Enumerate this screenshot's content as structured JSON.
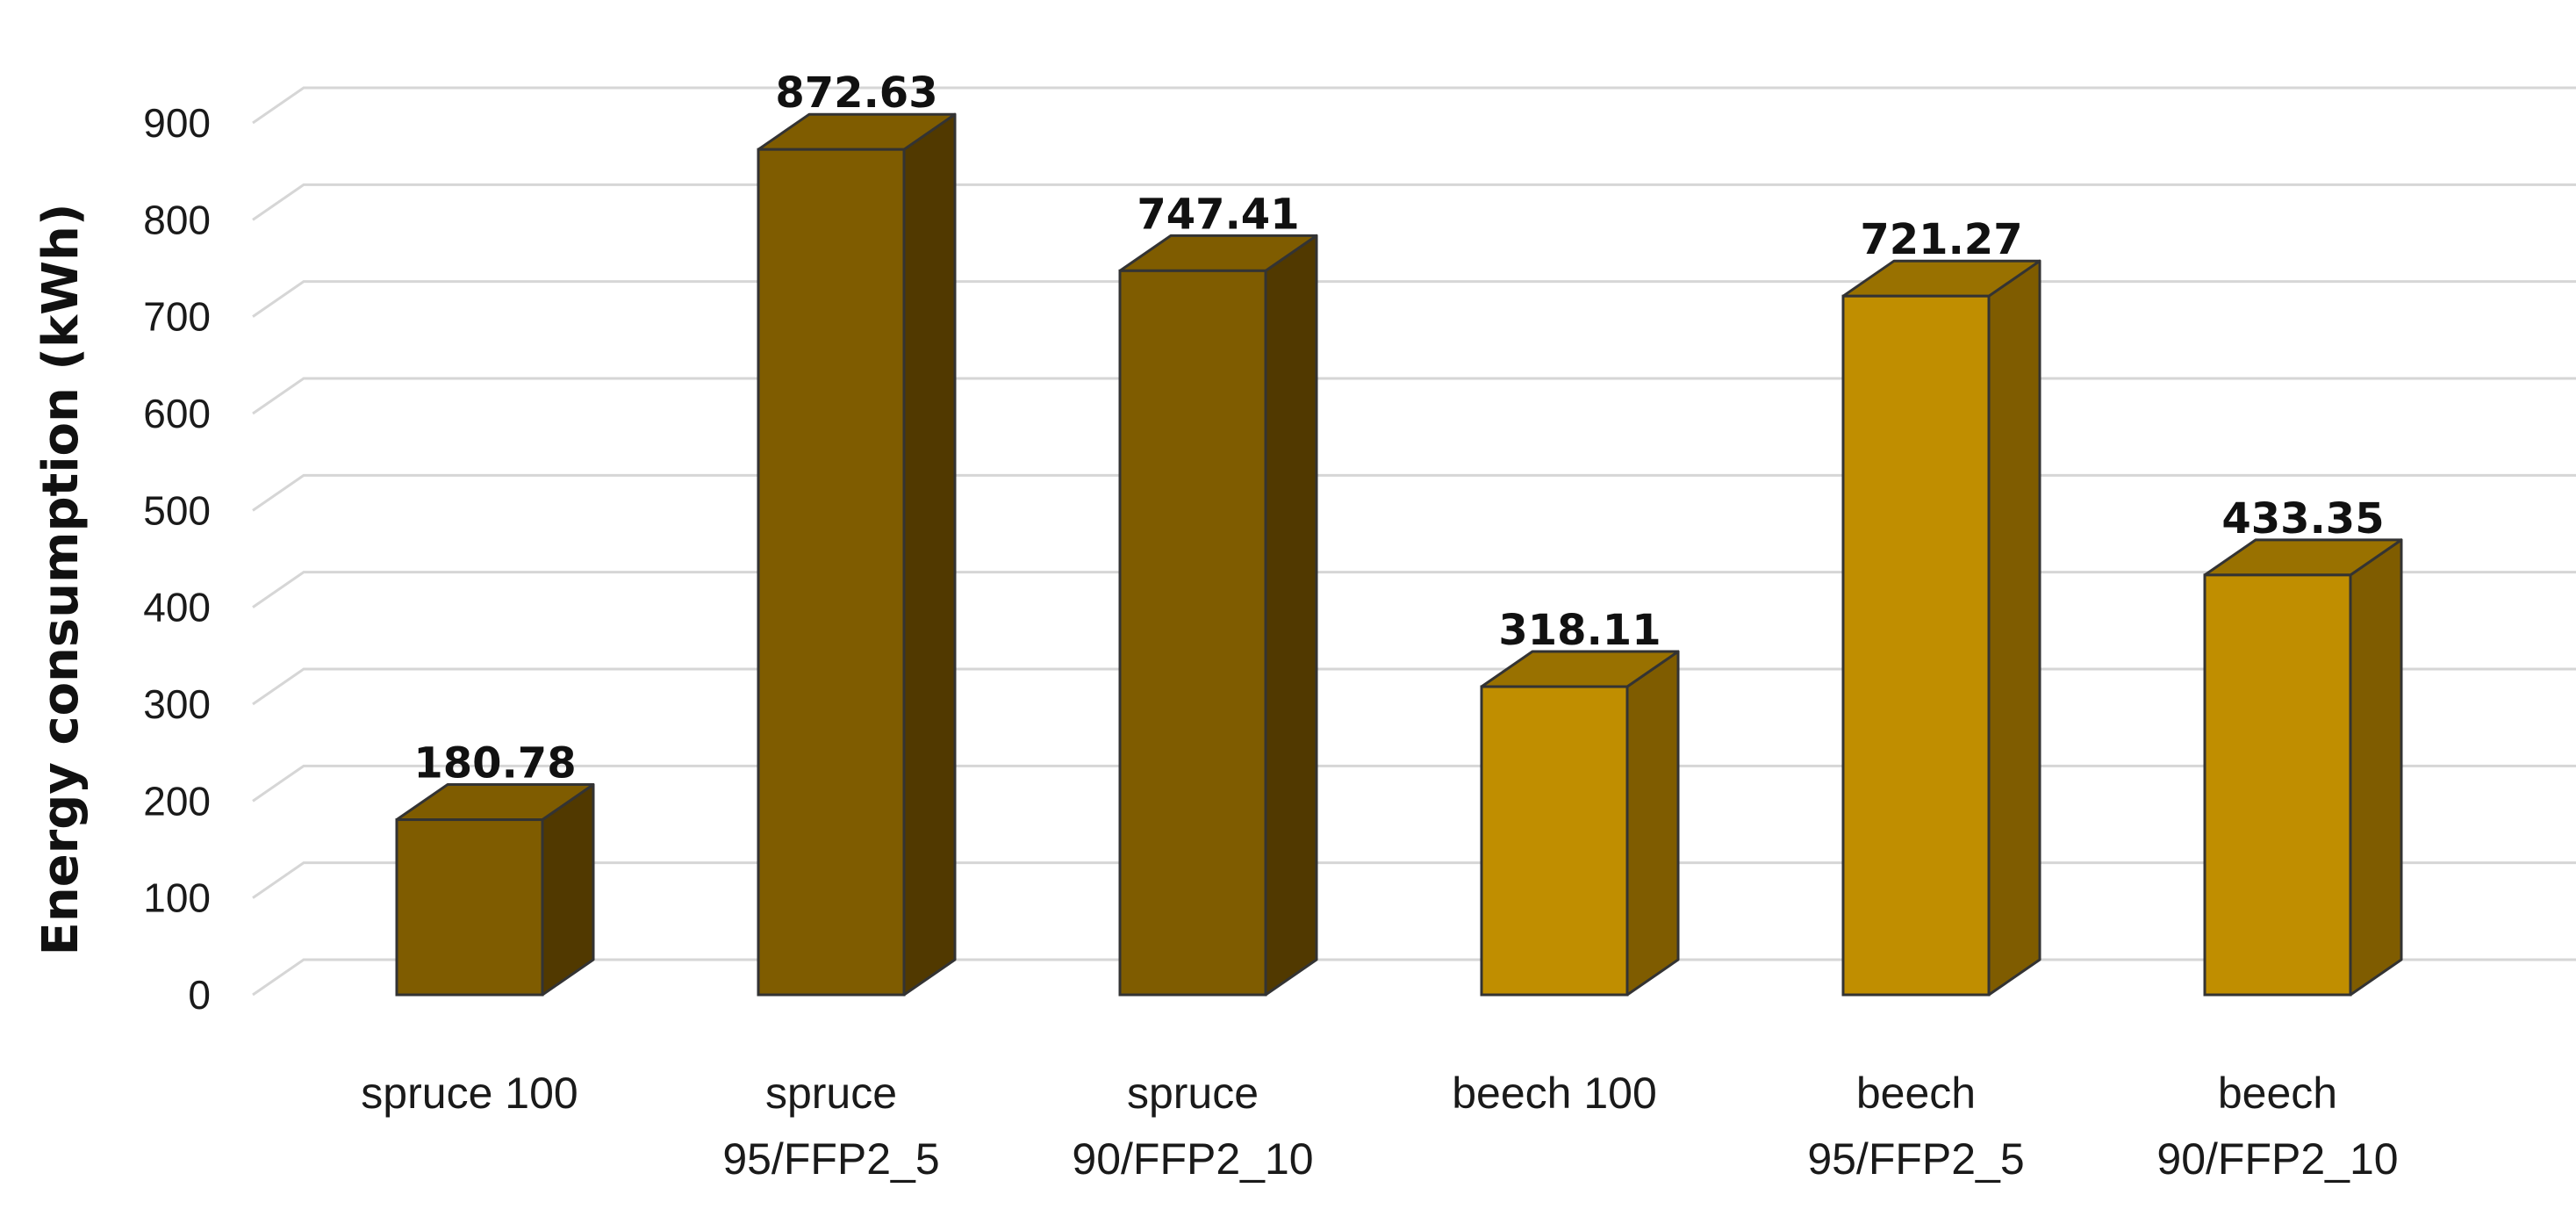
{
  "chart_data": {
    "type": "bar",
    "style": "3d-column",
    "categories": [
      [
        "spruce 100"
      ],
      [
        "spruce",
        "95/FFP2_5"
      ],
      [
        "spruce",
        "90/FFP2_10"
      ],
      [
        "beech 100"
      ],
      [
        "beech",
        "95/FFP2_5"
      ],
      [
        "beech",
        "90/FFP2_10"
      ]
    ],
    "values": [
      180.78,
      872.63,
      747.41,
      318.11,
      721.27,
      433.35
    ],
    "value_labels": [
      "180.78",
      "872.63",
      "747.41",
      "318.11",
      "721.27",
      "433.35"
    ],
    "ylabel": "Energy consumption  (kWh)",
    "ylim": [
      0,
      900
    ],
    "yticks": [
      0,
      100,
      200,
      300,
      400,
      500,
      600,
      700,
      800,
      900
    ],
    "grid": true,
    "legend": "none",
    "colors": {
      "spruce": {
        "front": "#7f5c00",
        "side": "#513900",
        "top": "#7f5c00"
      },
      "beech": {
        "front": "#c08e00",
        "side": "#7f5c00",
        "top": "#997100"
      },
      "edge": "#333333",
      "grid": "#d6d6d6"
    },
    "bar_color_group": [
      "spruce",
      "spruce",
      "spruce",
      "beech",
      "beech",
      "beech"
    ]
  }
}
